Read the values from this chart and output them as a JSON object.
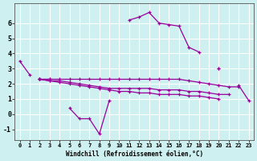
{
  "xlabel": "Windchill (Refroidissement éolien,°C)",
  "background_color": "#cff0f0",
  "grid_color": "#ffffff",
  "line_color": "#990099",
  "x_hours": [
    0,
    1,
    2,
    3,
    4,
    5,
    6,
    7,
    8,
    9,
    10,
    11,
    12,
    13,
    14,
    15,
    16,
    17,
    18,
    19,
    20,
    21,
    22,
    23
  ],
  "line_main": [
    3.5,
    2.6,
    null,
    null,
    null,
    0.4,
    -0.3,
    -0.3,
    -1.3,
    0.9,
    null,
    6.2,
    6.4,
    6.7,
    6.0,
    5.9,
    5.8,
    4.4,
    4.1,
    null,
    3.0,
    null,
    null,
    null
  ],
  "line_upper": [
    null,
    null,
    2.3,
    2.3,
    null,
    null,
    null,
    null,
    null,
    null,
    null,
    null,
    null,
    null,
    null,
    null,
    null,
    null,
    null,
    null,
    3.0,
    null,
    1.9,
    0.9
  ],
  "line_mid1": [
    null,
    null,
    2.3,
    2.3,
    2.3,
    2.3,
    2.3,
    2.3,
    2.3,
    2.3,
    2.3,
    2.3,
    2.3,
    2.3,
    2.3,
    2.3,
    2.3,
    2.2,
    2.1,
    2.0,
    1.9,
    1.8,
    1.8,
    null
  ],
  "line_mid2": [
    null,
    null,
    2.3,
    2.2,
    2.2,
    2.1,
    2.0,
    1.9,
    1.8,
    1.7,
    1.7,
    1.7,
    1.7,
    1.7,
    1.6,
    1.6,
    1.6,
    1.5,
    1.5,
    1.4,
    1.3,
    1.3,
    null,
    null
  ],
  "line_low": [
    null,
    null,
    2.3,
    2.2,
    2.1,
    2.0,
    1.9,
    1.8,
    1.7,
    1.6,
    1.5,
    1.5,
    1.4,
    1.4,
    1.3,
    1.3,
    1.3,
    1.2,
    1.2,
    1.1,
    1.0,
    null,
    null,
    null
  ],
  "ylim": [
    -1.7,
    7.3
  ],
  "xlim": [
    -0.5,
    23.5
  ],
  "yticks": [
    -1,
    0,
    1,
    2,
    3,
    4,
    5,
    6
  ],
  "xticks": [
    0,
    1,
    2,
    3,
    4,
    5,
    6,
    7,
    8,
    9,
    10,
    11,
    12,
    13,
    14,
    15,
    16,
    17,
    18,
    19,
    20,
    21,
    22,
    23
  ]
}
